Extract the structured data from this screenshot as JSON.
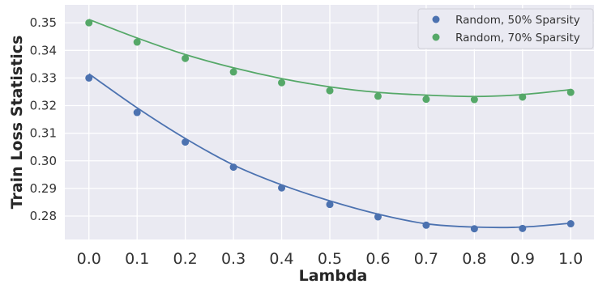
{
  "chart_data": {
    "type": "scatter",
    "title": "",
    "xlabel": "Lambda",
    "ylabel": "Train Loss Statistics",
    "xlim": [
      -0.05,
      1.05
    ],
    "ylim": [
      0.2715,
      0.3565
    ],
    "x_ticks": [
      "0.0",
      "0.1",
      "0.2",
      "0.3",
      "0.4",
      "0.5",
      "0.6",
      "0.7",
      "0.8",
      "0.9",
      "1.0"
    ],
    "y_ticks": [
      "0.28",
      "0.29",
      "0.30",
      "0.31",
      "0.32",
      "0.33",
      "0.34",
      "0.35"
    ],
    "grid": true,
    "legend_position": "top-right",
    "x": [
      0.0,
      0.1,
      0.2,
      0.3,
      0.4,
      0.5,
      0.6,
      0.7,
      0.8,
      0.9,
      1.0
    ],
    "series": [
      {
        "name": "Random, 50% Sparsity",
        "color": "#4c72b0",
        "values": [
          0.33,
          0.3175,
          0.3068,
          0.2977,
          0.2902,
          0.2842,
          0.2797,
          0.2767,
          0.2754,
          0.2755,
          0.2772
        ],
        "fit": [
          0.3315,
          0.3192,
          0.3081,
          0.2985,
          0.2913,
          0.2855,
          0.2807,
          0.2772,
          0.276,
          0.276,
          0.2774
        ]
      },
      {
        "name": "Random, 70% Sparsity",
        "color": "#55a868",
        "values": [
          0.35,
          0.343,
          0.3371,
          0.3322,
          0.3283,
          0.3254,
          0.3234,
          0.3223,
          0.3222,
          0.3231,
          0.3248
        ],
        "fit": [
          0.3512,
          0.3445,
          0.3385,
          0.3337,
          0.3298,
          0.3268,
          0.3248,
          0.3238,
          0.3233,
          0.324,
          0.3258
        ]
      }
    ]
  }
}
